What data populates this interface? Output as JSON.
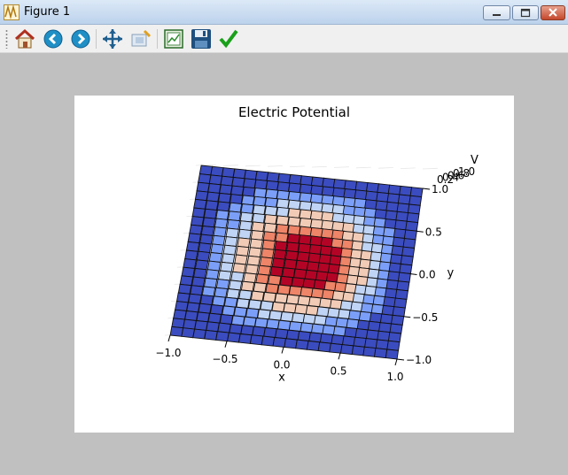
{
  "window": {
    "title": "Figure 1",
    "buttons": [
      "minimize",
      "maximize",
      "close"
    ]
  },
  "toolbar": {
    "items": [
      {
        "name": "home-icon",
        "color": "#c0392b"
      },
      {
        "name": "back-icon",
        "color": "#1f7fb5"
      },
      {
        "name": "forward-icon",
        "color": "#1f7fb5"
      },
      {
        "name": "pan-icon",
        "color": "#1f5f8f"
      },
      {
        "name": "zoom-icon",
        "color": "#8aa0b8"
      },
      {
        "name": "subplots-icon",
        "color": "#3a8a3a"
      },
      {
        "name": "save-icon",
        "color": "#1f4f7f"
      },
      {
        "name": "edit-check-icon",
        "color": "#22aa22"
      }
    ]
  },
  "chart_data": {
    "type": "surface",
    "title": "Electric Potential",
    "xlabel": "x",
    "ylabel": "y",
    "zlabel": "V",
    "x_ticks": [
      "−1.0",
      "−0.5",
      "0.0",
      "0.5",
      "1.0"
    ],
    "y_ticks": [
      "−1.0",
      "−0.5",
      "0.0",
      "0.5",
      "1.0"
    ],
    "z_ticks": [
      "0.2",
      "0.4",
      "0.6",
      "0.8",
      "1.0"
    ],
    "xlim": [
      -1,
      1
    ],
    "ylim": [
      -1,
      1
    ],
    "zlim": [
      0,
      1
    ],
    "grid_n": 21,
    "colormap": "coolwarm",
    "colors": [
      "#3b4cc0",
      "#7b9ff9",
      "#c0d4f5",
      "#f2cbb7",
      "#ee8468",
      "#b40426"
    ]
  }
}
